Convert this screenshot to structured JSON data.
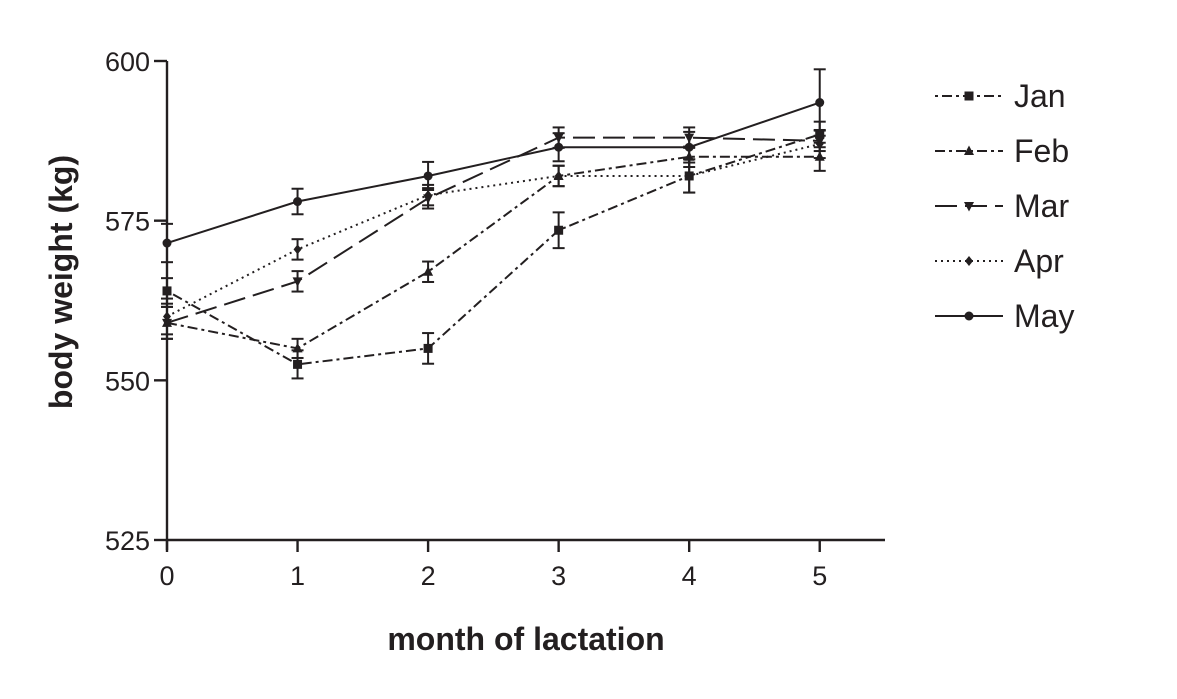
{
  "chart_data": {
    "type": "line",
    "xlabel": "month of lactation",
    "ylabel": "body weight (kg)",
    "x": [
      0,
      1,
      2,
      3,
      4,
      5
    ],
    "xlim": [
      0,
      5.5
    ],
    "ylim": [
      525,
      600
    ],
    "xticks": [
      "0",
      "1",
      "2",
      "3",
      "4",
      "5"
    ],
    "yticks": [
      "525",
      "550",
      "575",
      "600"
    ],
    "grid": false,
    "legend_position": "right",
    "series": [
      {
        "name": "Jan",
        "marker": "square",
        "dash": "dot-dash",
        "values": [
          564,
          552.5,
          555,
          573.5,
          582,
          588.5
        ],
        "errors": [
          2,
          2.2,
          2.4,
          2.8,
          2.6,
          2
        ]
      },
      {
        "name": "Feb",
        "marker": "triangle-up",
        "dash": "dash-dot",
        "values": [
          559,
          555,
          567,
          582,
          585,
          585
        ],
        "errors": [
          2.5,
          1.5,
          1.6,
          1.6,
          1.6,
          2.2
        ]
      },
      {
        "name": "Mar",
        "marker": "triangle-down",
        "dash": "long-dash",
        "values": [
          559,
          565.5,
          578.5,
          588,
          588,
          587.5
        ],
        "errors": [
          2.5,
          1.6,
          1.6,
          1.6,
          1.6,
          1.6
        ]
      },
      {
        "name": "Apr",
        "marker": "diamond",
        "dash": "dotted",
        "values": [
          560,
          570.5,
          579,
          582,
          582,
          587
        ],
        "errors": [
          2.8,
          1.6,
          1.6,
          1.6,
          2.6,
          2.2
        ]
      },
      {
        "name": "May",
        "marker": "circle",
        "dash": "solid",
        "values": [
          571.5,
          578,
          582,
          586.5,
          586.5,
          593.5
        ],
        "errors": [
          3,
          2,
          2.2,
          2.2,
          2.4,
          5.2
        ]
      }
    ]
  }
}
